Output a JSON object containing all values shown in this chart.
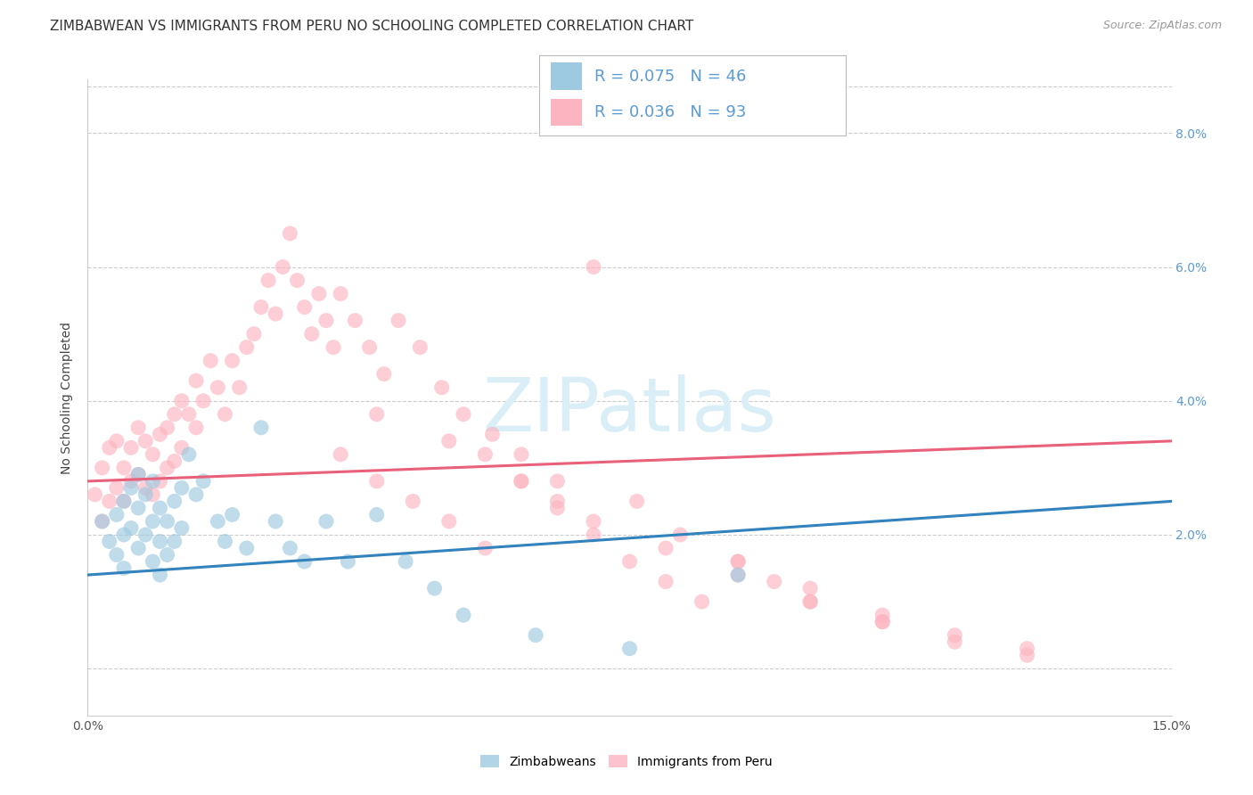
{
  "title": "ZIMBABWEAN VS IMMIGRANTS FROM PERU NO SCHOOLING COMPLETED CORRELATION CHART",
  "source": "Source: ZipAtlas.com",
  "ylabel_label": "No Schooling Completed",
  "right_yticklabels": [
    "",
    "2.0%",
    "4.0%",
    "6.0%",
    "8.0%"
  ],
  "right_ytick_vals": [
    0.0,
    0.02,
    0.04,
    0.06,
    0.08
  ],
  "xmin": 0.0,
  "xmax": 0.15,
  "ymin": -0.007,
  "ymax": 0.088,
  "blue_color": "#9ecae1",
  "pink_color": "#fcb4c0",
  "trend_blue_color": "#3182bd",
  "trend_pink_color": "#e8607a",
  "right_tick_color": "#5b9bd5",
  "legend_text_color": "#5b9bd5",
  "watermark_color": "#daeef8",
  "grid_color": "#cccccc",
  "title_color": "#333333",
  "source_color": "#999999",
  "title_fontsize": 11,
  "source_fontsize": 9,
  "axis_label_fontsize": 10,
  "tick_fontsize": 10,
  "legend_fontsize": 13,
  "watermark_fontsize": 60,
  "blue_trend": [
    0.0,
    0.014,
    0.15,
    0.025
  ],
  "pink_trend": [
    0.0,
    0.028,
    0.15,
    0.034
  ],
  "blue_x": [
    0.002,
    0.003,
    0.004,
    0.004,
    0.005,
    0.005,
    0.005,
    0.006,
    0.006,
    0.007,
    0.007,
    0.007,
    0.008,
    0.008,
    0.009,
    0.009,
    0.009,
    0.01,
    0.01,
    0.01,
    0.011,
    0.011,
    0.012,
    0.012,
    0.013,
    0.013,
    0.014,
    0.015,
    0.016,
    0.018,
    0.019,
    0.02,
    0.022,
    0.024,
    0.026,
    0.028,
    0.03,
    0.033,
    0.036,
    0.04,
    0.044,
    0.048,
    0.052,
    0.062,
    0.075,
    0.09
  ],
  "blue_y": [
    0.022,
    0.019,
    0.023,
    0.017,
    0.025,
    0.02,
    0.015,
    0.027,
    0.021,
    0.029,
    0.024,
    0.018,
    0.026,
    0.02,
    0.028,
    0.022,
    0.016,
    0.024,
    0.019,
    0.014,
    0.022,
    0.017,
    0.025,
    0.019,
    0.027,
    0.021,
    0.032,
    0.026,
    0.028,
    0.022,
    0.019,
    0.023,
    0.018,
    0.036,
    0.022,
    0.018,
    0.016,
    0.022,
    0.016,
    0.023,
    0.016,
    0.012,
    0.008,
    0.005,
    0.003,
    0.014
  ],
  "pink_x": [
    0.001,
    0.002,
    0.002,
    0.003,
    0.003,
    0.004,
    0.004,
    0.005,
    0.005,
    0.006,
    0.006,
    0.007,
    0.007,
    0.008,
    0.008,
    0.009,
    0.009,
    0.01,
    0.01,
    0.011,
    0.011,
    0.012,
    0.012,
    0.013,
    0.013,
    0.014,
    0.015,
    0.015,
    0.016,
    0.017,
    0.018,
    0.019,
    0.02,
    0.021,
    0.022,
    0.023,
    0.024,
    0.025,
    0.026,
    0.027,
    0.028,
    0.029,
    0.03,
    0.031,
    0.032,
    0.033,
    0.034,
    0.035,
    0.037,
    0.039,
    0.041,
    0.043,
    0.046,
    0.049,
    0.052,
    0.056,
    0.06,
    0.065,
    0.07,
    0.076,
    0.082,
    0.09,
    0.1,
    0.11,
    0.12,
    0.13,
    0.035,
    0.04,
    0.045,
    0.05,
    0.055,
    0.06,
    0.065,
    0.07,
    0.075,
    0.08,
    0.085,
    0.09,
    0.095,
    0.1,
    0.11,
    0.12,
    0.13,
    0.04,
    0.05,
    0.055,
    0.06,
    0.065,
    0.07,
    0.08,
    0.09,
    0.1,
    0.11
  ],
  "pink_y": [
    0.026,
    0.022,
    0.03,
    0.025,
    0.033,
    0.027,
    0.034,
    0.03,
    0.025,
    0.033,
    0.028,
    0.036,
    0.029,
    0.034,
    0.027,
    0.032,
    0.026,
    0.035,
    0.028,
    0.036,
    0.03,
    0.038,
    0.031,
    0.04,
    0.033,
    0.038,
    0.043,
    0.036,
    0.04,
    0.046,
    0.042,
    0.038,
    0.046,
    0.042,
    0.048,
    0.05,
    0.054,
    0.058,
    0.053,
    0.06,
    0.065,
    0.058,
    0.054,
    0.05,
    0.056,
    0.052,
    0.048,
    0.056,
    0.052,
    0.048,
    0.044,
    0.052,
    0.048,
    0.042,
    0.038,
    0.035,
    0.032,
    0.028,
    0.06,
    0.025,
    0.02,
    0.016,
    0.012,
    0.008,
    0.004,
    0.002,
    0.032,
    0.028,
    0.025,
    0.022,
    0.018,
    0.028,
    0.024,
    0.02,
    0.016,
    0.013,
    0.01,
    0.016,
    0.013,
    0.01,
    0.007,
    0.005,
    0.003,
    0.038,
    0.034,
    0.032,
    0.028,
    0.025,
    0.022,
    0.018,
    0.014,
    0.01,
    0.007
  ]
}
